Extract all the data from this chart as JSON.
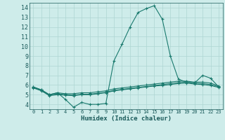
{
  "line1": [
    5.8,
    5.5,
    5.0,
    5.2,
    4.5,
    3.7,
    4.2,
    4.0,
    4.0,
    4.1,
    8.5,
    10.2,
    12.0,
    13.5,
    13.9,
    14.2,
    12.8,
    9.0,
    6.6,
    6.3,
    6.2,
    7.0,
    6.7,
    5.8
  ],
  "line2": [
    5.8,
    5.5,
    5.0,
    5.2,
    5.1,
    5.1,
    5.2,
    5.2,
    5.3,
    5.4,
    5.6,
    5.7,
    5.8,
    5.9,
    6.0,
    6.1,
    6.2,
    6.3,
    6.4,
    6.4,
    6.3,
    6.3,
    6.2,
    5.9
  ],
  "line3": [
    5.75,
    5.45,
    4.95,
    5.1,
    5.0,
    4.95,
    5.05,
    5.05,
    5.15,
    5.25,
    5.45,
    5.55,
    5.65,
    5.75,
    5.85,
    5.95,
    6.05,
    6.15,
    6.25,
    6.3,
    6.2,
    6.15,
    6.05,
    5.82
  ],
  "line4": [
    5.7,
    5.4,
    4.9,
    5.0,
    4.95,
    4.9,
    5.0,
    5.0,
    5.1,
    5.2,
    5.4,
    5.5,
    5.6,
    5.7,
    5.8,
    5.9,
    5.95,
    6.05,
    6.15,
    6.2,
    6.1,
    6.05,
    5.95,
    5.75
  ],
  "line_color": "#1a7a6e",
  "bg_color": "#ceecea",
  "grid_color": "#add6d2",
  "tick_label_color": "#1a5a5a",
  "xlabel": "Humidex (Indice chaleur)",
  "ylim": [
    3.5,
    14.5
  ],
  "xlim": [
    -0.5,
    23.5
  ],
  "yticks": [
    4,
    5,
    6,
    7,
    8,
    9,
    10,
    11,
    12,
    13,
    14
  ],
  "xticks": [
    0,
    1,
    2,
    3,
    4,
    5,
    6,
    7,
    8,
    9,
    10,
    11,
    12,
    13,
    14,
    15,
    16,
    17,
    18,
    19,
    20,
    21,
    22,
    23
  ]
}
